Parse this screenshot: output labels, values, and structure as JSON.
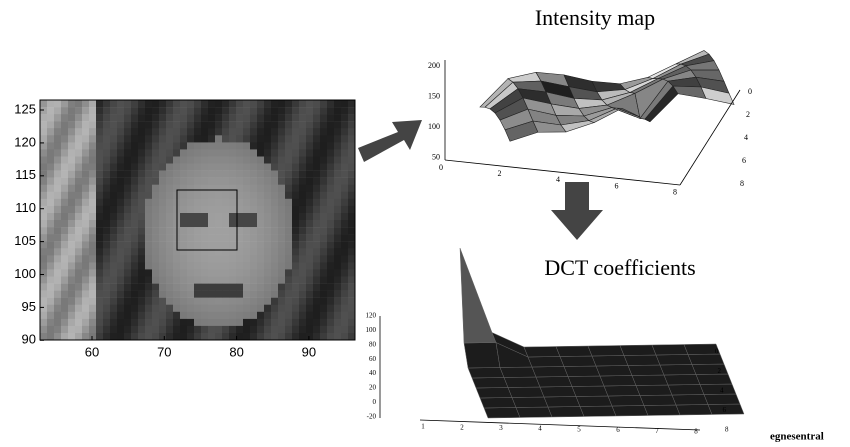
{
  "face_plot": {
    "yticks": [
      "125",
      "120",
      "115",
      "110",
      "105",
      "100",
      "95",
      "90"
    ],
    "xticks": [
      "60",
      "70",
      "80",
      "90"
    ]
  },
  "intensity_map": {
    "title": "Intensity map",
    "zticks": [
      "200",
      "150",
      "100",
      "50"
    ],
    "xticks": [
      "0",
      "2",
      "4",
      "6",
      "8"
    ],
    "yticks": [
      "0",
      "2",
      "4",
      "6",
      "8"
    ]
  },
  "dct": {
    "title": "DCT coefficients",
    "zticks": [
      "120",
      "100",
      "80",
      "60",
      "40",
      "20",
      "0",
      "-20"
    ],
    "xticks": [
      "1",
      "2",
      "3",
      "4",
      "5",
      "6",
      "7",
      "8"
    ],
    "yticks": [
      "0",
      "2",
      "4",
      "6",
      "8"
    ]
  },
  "caption": "egnesentral"
}
